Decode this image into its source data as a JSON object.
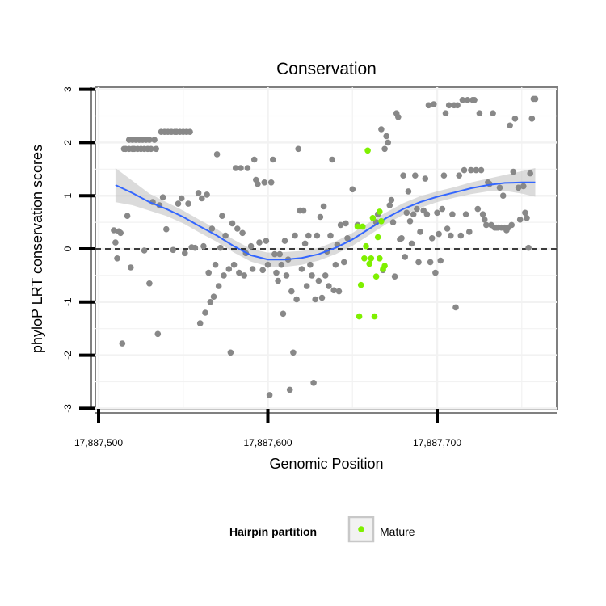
{
  "chart_data": {
    "type": "scatter",
    "title": "Conservation",
    "xlabel": "Genomic Position",
    "ylabel": "phyloP LRT conservation scores",
    "xlim": [
      17887490,
      17887770
    ],
    "ylim": [
      -3,
      3
    ],
    "x_ticks": [
      {
        "value": 17887500,
        "label": "17,887,500"
      },
      {
        "value": 17887600,
        "label": "17,887,600"
      },
      {
        "value": 17887700,
        "label": "17,887,700"
      }
    ],
    "y_ticks": [
      {
        "value": 3,
        "label": "3"
      },
      {
        "value": 2,
        "label": "2"
      },
      {
        "value": 1,
        "label": "1"
      },
      {
        "value": 0,
        "label": "0"
      },
      {
        "value": -1,
        "label": "-1"
      },
      {
        "value": -2,
        "label": "-2"
      },
      {
        "value": -3,
        "label": "-3"
      }
    ],
    "grid": true,
    "reference_line": {
      "y": 0,
      "style": "dashed",
      "color": "#000000"
    },
    "legend": {
      "title": "Hairpin partition",
      "position": "bottom",
      "items": [
        {
          "label": "Mature",
          "color": "#7ff000"
        }
      ]
    },
    "colors": {
      "other": "#888888",
      "mature": "#7ff000",
      "smooth": "#3366ff",
      "band": "#bebebe"
    },
    "series": [
      {
        "group": "other",
        "points": [
          [
            17887509,
            0.35
          ],
          [
            17887510,
            0.12
          ],
          [
            17887511,
            -0.18
          ],
          [
            17887512,
            0.33
          ],
          [
            17887513,
            0.3
          ],
          [
            17887514,
            -1.78
          ],
          [
            17887515,
            1.88
          ],
          [
            17887516,
            1.88
          ],
          [
            17887517,
            0.62
          ],
          [
            17887518,
            1.88
          ],
          [
            17887518,
            2.05
          ],
          [
            17887519,
            -0.35
          ],
          [
            17887520,
            1.88
          ],
          [
            17887520,
            2.05
          ],
          [
            17887521,
            1.88
          ],
          [
            17887522,
            2.05
          ],
          [
            17887523,
            1.88
          ],
          [
            17887524,
            2.05
          ],
          [
            17887525,
            1.88
          ],
          [
            17887526,
            2.05
          ],
          [
            17887527,
            -0.03
          ],
          [
            17887527,
            1.88
          ],
          [
            17887528,
            2.05
          ],
          [
            17887529,
            1.88
          ],
          [
            17887530,
            -0.65
          ],
          [
            17887530,
            2.05
          ],
          [
            17887531,
            1.88
          ],
          [
            17887532,
            0.88
          ],
          [
            17887533,
            2.05
          ],
          [
            17887534,
            1.88
          ],
          [
            17887535,
            -1.6
          ],
          [
            17887536,
            0.82
          ],
          [
            17887537,
            2.2
          ],
          [
            17887538,
            0.97
          ],
          [
            17887539,
            2.2
          ],
          [
            17887540,
            0.37
          ],
          [
            17887541,
            2.2
          ],
          [
            17887543,
            2.2
          ],
          [
            17887544,
            -0.02
          ],
          [
            17887545,
            2.2
          ],
          [
            17887546,
            2.2
          ],
          [
            17887547,
            0.85
          ],
          [
            17887548,
            2.2
          ],
          [
            17887549,
            0.95
          ],
          [
            17887550,
            2.2
          ],
          [
            17887551,
            -0.08
          ],
          [
            17887552,
            2.2
          ],
          [
            17887553,
            0.85
          ],
          [
            17887554,
            2.2
          ],
          [
            17887555,
            0.03
          ],
          [
            17887557,
            0.02
          ],
          [
            17887559,
            1.05
          ],
          [
            17887560,
            -1.4
          ],
          [
            17887561,
            0.95
          ],
          [
            17887562,
            0.05
          ],
          [
            17887563,
            -1.2
          ],
          [
            17887564,
            1.02
          ],
          [
            17887565,
            -0.45
          ],
          [
            17887566,
            -1.0
          ],
          [
            17887567,
            0.38
          ],
          [
            17887568,
            -0.9
          ],
          [
            17887569,
            -0.3
          ],
          [
            17887570,
            1.78
          ],
          [
            17887571,
            -0.7
          ],
          [
            17887572,
            0.02
          ],
          [
            17887573,
            0.62
          ],
          [
            17887574,
            -0.5
          ],
          [
            17887575,
            0.25
          ],
          [
            17887577,
            -0.38
          ],
          [
            17887578,
            -1.95
          ],
          [
            17887579,
            0.48
          ],
          [
            17887580,
            -0.3
          ],
          [
            17887581,
            1.52
          ],
          [
            17887582,
            0.38
          ],
          [
            17887583,
            -0.45
          ],
          [
            17887584,
            1.52
          ],
          [
            17887585,
            0.3
          ],
          [
            17887586,
            -0.5
          ],
          [
            17887587,
            -0.08
          ],
          [
            17887588,
            1.52
          ],
          [
            17887590,
            0.05
          ],
          [
            17887591,
            -0.38
          ],
          [
            17887592,
            1.68
          ],
          [
            17887593,
            1.3
          ],
          [
            17887594,
            1.22
          ],
          [
            17887595,
            0.12
          ],
          [
            17887597,
            -0.4
          ],
          [
            17887598,
            1.25
          ],
          [
            17887599,
            0.15
          ],
          [
            17887600,
            -0.3
          ],
          [
            17887601,
            -2.75
          ],
          [
            17887602,
            1.25
          ],
          [
            17887603,
            1.68
          ],
          [
            17887604,
            -0.1
          ],
          [
            17887605,
            -0.45
          ],
          [
            17887606,
            -0.6
          ],
          [
            17887607,
            -0.1
          ],
          [
            17887608,
            -0.3
          ],
          [
            17887609,
            -1.22
          ],
          [
            17887610,
            0.15
          ],
          [
            17887611,
            -0.5
          ],
          [
            17887612,
            -0.2
          ],
          [
            17887613,
            -2.65
          ],
          [
            17887614,
            -0.8
          ],
          [
            17887615,
            -1.95
          ],
          [
            17887616,
            0.25
          ],
          [
            17887617,
            -0.95
          ],
          [
            17887618,
            1.88
          ],
          [
            17887619,
            0.72
          ],
          [
            17887620,
            -0.38
          ],
          [
            17887621,
            0.72
          ],
          [
            17887622,
            0.1
          ],
          [
            17887623,
            -0.7
          ],
          [
            17887624,
            0.25
          ],
          [
            17887625,
            -0.3
          ],
          [
            17887626,
            -0.5
          ],
          [
            17887627,
            -2.52
          ],
          [
            17887628,
            -0.95
          ],
          [
            17887629,
            0.25
          ],
          [
            17887630,
            -0.6
          ],
          [
            17887631,
            0.6
          ],
          [
            17887632,
            -0.92
          ],
          [
            17887633,
            0.8
          ],
          [
            17887634,
            -0.5
          ],
          [
            17887635,
            -0.05
          ],
          [
            17887636,
            -0.7
          ],
          [
            17887637,
            0.25
          ],
          [
            17887638,
            1.68
          ],
          [
            17887639,
            -0.78
          ],
          [
            17887640,
            -0.3
          ],
          [
            17887641,
            0.08
          ],
          [
            17887642,
            -0.8
          ],
          [
            17887643,
            0.45
          ],
          [
            17887645,
            -0.25
          ],
          [
            17887646,
            0.48
          ],
          [
            17887647,
            0.2
          ],
          [
            17887650,
            1.12
          ],
          [
            17887653,
            0.45
          ],
          [
            17887664,
            0.5
          ],
          [
            17887665,
            0.65
          ],
          [
            17887667,
            2.25
          ],
          [
            17887668,
            -0.4
          ],
          [
            17887669,
            1.88
          ],
          [
            17887670,
            2.12
          ],
          [
            17887671,
            2.0
          ],
          [
            17887672,
            0.82
          ],
          [
            17887673,
            0.92
          ],
          [
            17887674,
            0.5
          ],
          [
            17887675,
            -0.52
          ],
          [
            17887676,
            2.55
          ],
          [
            17887677,
            2.48
          ],
          [
            17887678,
            0.18
          ],
          [
            17887679,
            0.2
          ],
          [
            17887680,
            1.38
          ],
          [
            17887681,
            -0.15
          ],
          [
            17887682,
            0.68
          ],
          [
            17887683,
            1.08
          ],
          [
            17887684,
            0.52
          ],
          [
            17887685,
            0.1
          ],
          [
            17887686,
            0.65
          ],
          [
            17887687,
            1.38
          ],
          [
            17887688,
            0.75
          ],
          [
            17887689,
            -0.25
          ],
          [
            17887690,
            0.32
          ],
          [
            17887692,
            0.72
          ],
          [
            17887693,
            1.32
          ],
          [
            17887694,
            0.65
          ],
          [
            17887695,
            2.7
          ],
          [
            17887696,
            -0.25
          ],
          [
            17887697,
            0.2
          ],
          [
            17887698,
            2.72
          ],
          [
            17887699,
            -0.45
          ],
          [
            17887700,
            0.68
          ],
          [
            17887701,
            0.28
          ],
          [
            17887702,
            -0.22
          ],
          [
            17887703,
            0.75
          ],
          [
            17887704,
            1.38
          ],
          [
            17887705,
            2.55
          ],
          [
            17887706,
            0.38
          ],
          [
            17887707,
            2.7
          ],
          [
            17887708,
            0.25
          ],
          [
            17887709,
            0.65
          ],
          [
            17887710,
            2.7
          ],
          [
            17887711,
            -1.1
          ],
          [
            17887712,
            2.7
          ],
          [
            17887713,
            1.38
          ],
          [
            17887714,
            0.25
          ],
          [
            17887715,
            2.8
          ],
          [
            17887716,
            1.48
          ],
          [
            17887717,
            0.65
          ],
          [
            17887718,
            2.8
          ],
          [
            17887719,
            0.32
          ],
          [
            17887720,
            1.48
          ],
          [
            17887721,
            2.8
          ],
          [
            17887722,
            2.8
          ],
          [
            17887723,
            1.48
          ],
          [
            17887724,
            0.75
          ],
          [
            17887725,
            2.55
          ],
          [
            17887726,
            1.48
          ],
          [
            17887727,
            0.65
          ],
          [
            17887728,
            0.55
          ],
          [
            17887729,
            0.45
          ],
          [
            17887730,
            1.25
          ],
          [
            17887731,
            1.22
          ],
          [
            17887732,
            0.45
          ],
          [
            17887733,
            2.55
          ],
          [
            17887734,
            0.4
          ],
          [
            17887735,
            0.4
          ],
          [
            17887736,
            0.4
          ],
          [
            17887737,
            1.15
          ],
          [
            17887738,
            0.4
          ],
          [
            17887739,
            1.0
          ],
          [
            17887740,
            0.4
          ],
          [
            17887741,
            0.35
          ],
          [
            17887742,
            0.4
          ],
          [
            17887743,
            2.32
          ],
          [
            17887744,
            0.45
          ],
          [
            17887745,
            1.45
          ],
          [
            17887746,
            2.45
          ],
          [
            17887748,
            1.15
          ],
          [
            17887749,
            0.55
          ],
          [
            17887751,
            1.18
          ],
          [
            17887752,
            0.68
          ],
          [
            17887753,
            0.58
          ],
          [
            17887754,
            0.02
          ],
          [
            17887755,
            1.42
          ],
          [
            17887756,
            2.45
          ],
          [
            17887757,
            2.82
          ],
          [
            17887758,
            2.82
          ]
        ]
      },
      {
        "group": "Mature",
        "name": "Mature",
        "points": [
          [
            17887653,
            0.42
          ],
          [
            17887654,
            -1.27
          ],
          [
            17887655,
            -0.68
          ],
          [
            17887656,
            0.42
          ],
          [
            17887657,
            -0.18
          ],
          [
            17887658,
            0.05
          ],
          [
            17887659,
            1.85
          ],
          [
            17887660,
            -0.28
          ],
          [
            17887661,
            -0.18
          ],
          [
            17887662,
            0.58
          ],
          [
            17887663,
            -1.27
          ],
          [
            17887664,
            -0.52
          ],
          [
            17887665,
            0.22
          ],
          [
            17887666,
            -0.18
          ],
          [
            17887667,
            0.52
          ],
          [
            17887668,
            -0.38
          ],
          [
            17887669,
            -0.32
          ],
          [
            17887666,
            0.7
          ]
        ]
      }
    ],
    "smooth": {
      "x": [
        17887510,
        17887520,
        17887530,
        17887540,
        17887550,
        17887560,
        17887570,
        17887580,
        17887590,
        17887600,
        17887610,
        17887620,
        17887630,
        17887640,
        17887650,
        17887660,
        17887670,
        17887680,
        17887690,
        17887700,
        17887710,
        17887720,
        17887730,
        17887740,
        17887750,
        17887758
      ],
      "y": [
        1.2,
        1.05,
        0.88,
        0.75,
        0.6,
        0.42,
        0.25,
        0.05,
        -0.12,
        -0.2,
        -0.2,
        -0.17,
        -0.1,
        0.02,
        0.18,
        0.38,
        0.58,
        0.75,
        0.88,
        0.98,
        1.06,
        1.14,
        1.2,
        1.24,
        1.25,
        1.25
      ],
      "lower": [
        0.88,
        0.82,
        0.72,
        0.62,
        0.48,
        0.3,
        0.13,
        -0.07,
        -0.24,
        -0.33,
        -0.34,
        -0.3,
        -0.22,
        -0.1,
        0.06,
        0.26,
        0.47,
        0.64,
        0.77,
        0.88,
        0.96,
        1.03,
        1.08,
        1.09,
        1.04,
        0.98
      ],
      "upper": [
        1.52,
        1.28,
        1.04,
        0.88,
        0.72,
        0.54,
        0.37,
        0.17,
        0.0,
        -0.07,
        -0.06,
        -0.04,
        0.02,
        0.14,
        0.3,
        0.5,
        0.69,
        0.86,
        0.99,
        1.08,
        1.16,
        1.25,
        1.32,
        1.39,
        1.46,
        1.52
      ]
    }
  }
}
